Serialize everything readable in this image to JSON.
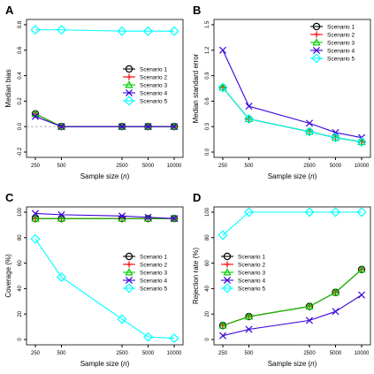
{
  "colors": {
    "Scenario 1": "#000000",
    "Scenario 2": "#ff0000",
    "Scenario 3": "#00cd00",
    "Scenario 4": "#3a00d9",
    "Scenario 5": "#00ffff"
  },
  "markers": {
    "Scenario 1": "circle",
    "Scenario 2": "plus",
    "Scenario 3": "triangle",
    "Scenario 4": "x",
    "Scenario 5": "diamond"
  },
  "chart_data": [
    {
      "panel": "A",
      "type": "line",
      "xlabel": "Sample size (n)",
      "ylabel": "Median bias",
      "x": [
        250,
        500,
        2500,
        5000,
        10000
      ],
      "xscale": "log",
      "ylim": [
        -0.2,
        0.8
      ],
      "yticks": [
        "-0.2",
        "0.0",
        "0.2",
        "0.4",
        "0.6",
        "0.8"
      ],
      "hline": 0,
      "legend_position": "center-right",
      "series": [
        {
          "name": "Scenario 1",
          "values": [
            0.1,
            0.0,
            0.0,
            0.0,
            0.0
          ]
        },
        {
          "name": "Scenario 2",
          "values": [
            0.1,
            0.0,
            0.0,
            0.0,
            0.0
          ]
        },
        {
          "name": "Scenario 3",
          "values": [
            0.1,
            0.0,
            0.0,
            0.0,
            0.0
          ]
        },
        {
          "name": "Scenario 4",
          "values": [
            0.08,
            0.0,
            0.0,
            0.0,
            0.0
          ]
        },
        {
          "name": "Scenario 5",
          "values": [
            0.76,
            0.76,
            0.75,
            0.75,
            0.75
          ]
        }
      ]
    },
    {
      "panel": "B",
      "type": "line",
      "xlabel": "Sample size (n)",
      "ylabel": "Median standard error",
      "x": [
        250,
        500,
        2500,
        5000,
        10000
      ],
      "xscale": "log",
      "ylim": [
        0,
        1.5
      ],
      "yticks": [
        "0.0",
        "0.3",
        "0.6",
        "0.9",
        "1.2",
        "1.5"
      ],
      "legend_position": "top-right",
      "series": [
        {
          "name": "Scenario 1",
          "values": [
            0.76,
            0.39,
            0.24,
            0.17,
            0.12
          ]
        },
        {
          "name": "Scenario 2",
          "values": [
            0.76,
            0.39,
            0.24,
            0.17,
            0.12
          ]
        },
        {
          "name": "Scenario 3",
          "values": [
            0.76,
            0.39,
            0.24,
            0.17,
            0.12
          ]
        },
        {
          "name": "Scenario 4",
          "values": [
            1.2,
            0.54,
            0.34,
            0.23,
            0.17
          ]
        },
        {
          "name": "Scenario 5",
          "values": [
            0.76,
            0.39,
            0.24,
            0.17,
            0.12
          ]
        }
      ]
    },
    {
      "panel": "C",
      "type": "line",
      "xlabel": "Sample size (n)",
      "ylabel": "Coverage (%)",
      "x": [
        250,
        500,
        2500,
        5000,
        10000
      ],
      "xscale": "log",
      "ylim": [
        0,
        100
      ],
      "yticks": [
        "0",
        "20",
        "40",
        "60",
        "80",
        "100"
      ],
      "legend_position": "center-right",
      "series": [
        {
          "name": "Scenario 1",
          "values": [
            95,
            95,
            95,
            95,
            95
          ]
        },
        {
          "name": "Scenario 2",
          "values": [
            95,
            95,
            95,
            95,
            95
          ]
        },
        {
          "name": "Scenario 3",
          "values": [
            95,
            95,
            95,
            95,
            95
          ]
        },
        {
          "name": "Scenario 4",
          "values": [
            99,
            98,
            97,
            96,
            95
          ]
        },
        {
          "name": "Scenario 5",
          "values": [
            79,
            49,
            16,
            2,
            1
          ]
        }
      ]
    },
    {
      "panel": "D",
      "type": "line",
      "xlabel": "Sample size (n)",
      "ylabel": "Rejection rate (%)",
      "x": [
        250,
        500,
        2500,
        5000,
        10000
      ],
      "xscale": "log",
      "ylim": [
        0,
        100
      ],
      "yticks": [
        "0",
        "20",
        "40",
        "60",
        "80",
        "100"
      ],
      "legend_position": "center-left",
      "series": [
        {
          "name": "Scenario 1",
          "values": [
            11,
            18,
            26,
            37,
            55
          ]
        },
        {
          "name": "Scenario 2",
          "values": [
            11,
            18,
            26,
            37,
            55
          ]
        },
        {
          "name": "Scenario 3",
          "values": [
            11,
            18,
            26,
            37,
            55
          ]
        },
        {
          "name": "Scenario 4",
          "values": [
            3,
            8,
            15,
            22,
            35
          ]
        },
        {
          "name": "Scenario 5",
          "values": [
            82,
            100,
            100,
            100,
            100
          ]
        }
      ]
    }
  ]
}
